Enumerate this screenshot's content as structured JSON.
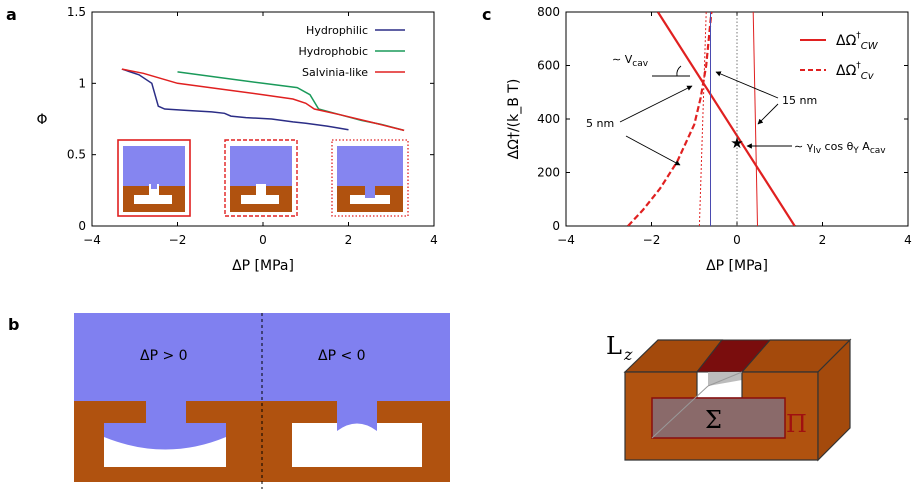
{
  "figure": {
    "panel_a": "a",
    "panel_b": "b",
    "panel_c": "c",
    "b_left": "ΔP > 0",
    "b_right": "ΔP < 0",
    "geom_Lz": "L",
    "geom_Lz_sub": "z",
    "geom_Sigma": "Σ",
    "geom_Pi": "Π"
  },
  "chart_data": [
    {
      "type": "line",
      "xlabel": "ΔP [MPa]",
      "ylabel": "Φ",
      "xlim": [
        -4,
        4
      ],
      "ylim": [
        0,
        1.5
      ],
      "xticks": [
        "−4",
        "−2",
        "0",
        "2",
        "4"
      ],
      "yticks": [
        "0",
        "0.5",
        "1",
        "1.5"
      ],
      "legend_position": "top-right",
      "series": [
        {
          "name": "Hydrophilic",
          "color": "#2b2d86",
          "x": [
            -3.3,
            -2.9,
            -2.6,
            -2.45,
            -2.3,
            -1.8,
            -1.2,
            -0.9,
            -0.75,
            -0.4,
            0.2,
            0.7,
            1.0,
            1.5,
            2.0
          ],
          "y": [
            1.1,
            1.06,
            1.0,
            0.84,
            0.82,
            0.81,
            0.8,
            0.79,
            0.77,
            0.76,
            0.75,
            0.73,
            0.72,
            0.7,
            0.675
          ]
        },
        {
          "name": "Hydrophobic",
          "color": "#1a9a5a",
          "x": [
            -2.0,
            -1.0,
            0.0,
            0.8,
            1.1,
            1.3,
            1.8,
            2.3,
            2.8,
            3.3
          ],
          "y": [
            1.08,
            1.04,
            1.0,
            0.97,
            0.92,
            0.82,
            0.78,
            0.74,
            0.71,
            0.67
          ]
        },
        {
          "name": "Salvinia-like",
          "color": "#e02020",
          "x": [
            -3.3,
            -2.8,
            -2.0,
            -1.0,
            0.0,
            0.7,
            1.0,
            1.2,
            1.8,
            2.5,
            3.3
          ],
          "y": [
            1.1,
            1.07,
            1.0,
            0.96,
            0.92,
            0.89,
            0.86,
            0.82,
            0.78,
            0.73,
            0.67
          ]
        }
      ]
    },
    {
      "type": "line",
      "xlabel": "ΔP [MPa]",
      "ylabel": "ΔΩ†/(k_B T)",
      "xlim": [
        -4,
        4
      ],
      "ylim": [
        0,
        800
      ],
      "xticks": [
        "−4",
        "−2",
        "0",
        "2",
        "4"
      ],
      "yticks": [
        "0",
        "200",
        "400",
        "600",
        "800"
      ],
      "legend_position": "top-right",
      "series": [
        {
          "name": "ΔΩ†_CW",
          "color": "#e02020",
          "style": "solid",
          "x": [
            -1.85,
            1.35
          ],
          "y": [
            800,
            0
          ]
        },
        {
          "name": "ΔΩ†_Cv",
          "color": "#e02020",
          "style": "dashed",
          "x": [
            -2.55,
            -2.2,
            -1.8,
            -1.4,
            -1.0,
            -0.85,
            -0.72,
            -0.6
          ],
          "y": [
            0,
            60,
            140,
            240,
            380,
            480,
            600,
            800
          ]
        },
        {
          "color": "#e02020",
          "style": "thin-solid",
          "x": [
            0.38,
            0.48
          ],
          "y": [
            800,
            0
          ]
        },
        {
          "color": "#e02020",
          "style": "thin-dotted",
          "x": [
            -0.88,
            -0.72
          ],
          "y": [
            0,
            800
          ]
        },
        {
          "color": "#4a4ab0",
          "style": "thin-solid",
          "x": [
            -0.62,
            -0.62
          ],
          "y": [
            0,
            800
          ]
        },
        {
          "color": "#555555",
          "style": "dotted",
          "x": [
            0,
            0
          ],
          "y": [
            0,
            800
          ]
        }
      ],
      "legend": [
        {
          "label": "ΔΩ",
          "sup": "†",
          "sub": "CW"
        },
        {
          "label": "ΔΩ",
          "sup": "†",
          "sub": "Cv"
        }
      ],
      "annotations": {
        "vcav": "∼ V",
        "vcav_sub": "cav",
        "nm5": "5 nm",
        "nm15": "15 nm",
        "gamma": "∼ γ",
        "gamma_sub": "lv",
        "gamma_mid": " cos θ",
        "gamma_sub2": "Y",
        "gamma_tail": " A",
        "gamma_sub3": "cav"
      }
    }
  ]
}
